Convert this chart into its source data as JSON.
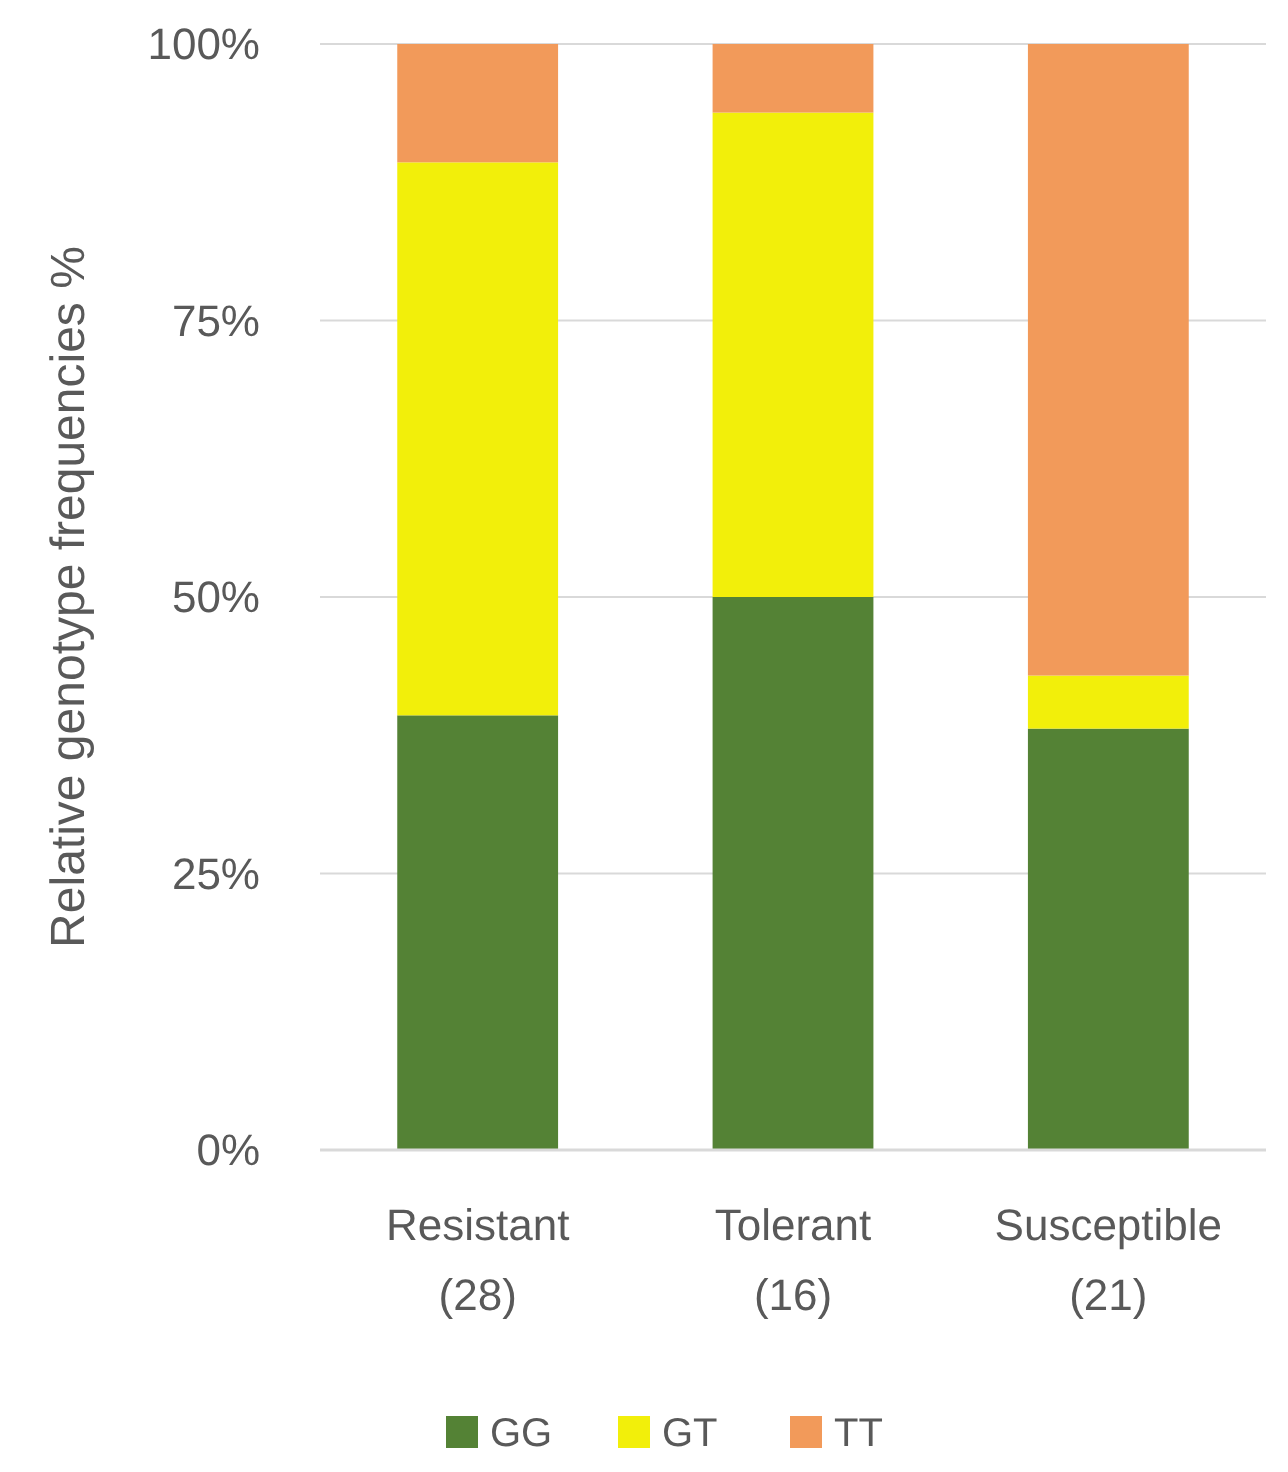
{
  "chart_data": {
    "type": "bar",
    "stacked": true,
    "ylabel": "Relative genotype frequencies %",
    "categories": [
      "Resistant (28)",
      "Tolerant (16)",
      "Susceptible (21)"
    ],
    "series": [
      {
        "name": "GG",
        "color": "#548235",
        "values": [
          39.3,
          50,
          38.1
        ]
      },
      {
        "name": "GT",
        "color": "#f2ef0a",
        "values": [
          50,
          43.8,
          4.8
        ]
      },
      {
        "name": "TT",
        "color": "#f29a5a",
        "values": [
          10.7,
          6.2,
          57.1
        ]
      }
    ],
    "ylim": [
      0,
      100
    ],
    "yticks": [
      {
        "value": 0,
        "label": "0%"
      },
      {
        "value": 25,
        "label": "25%"
      },
      {
        "value": 50,
        "label": "50%"
      },
      {
        "value": 75,
        "label": "75%"
      },
      {
        "value": 100,
        "label": "100%"
      }
    ],
    "grid": "y",
    "legend": "bottom"
  }
}
